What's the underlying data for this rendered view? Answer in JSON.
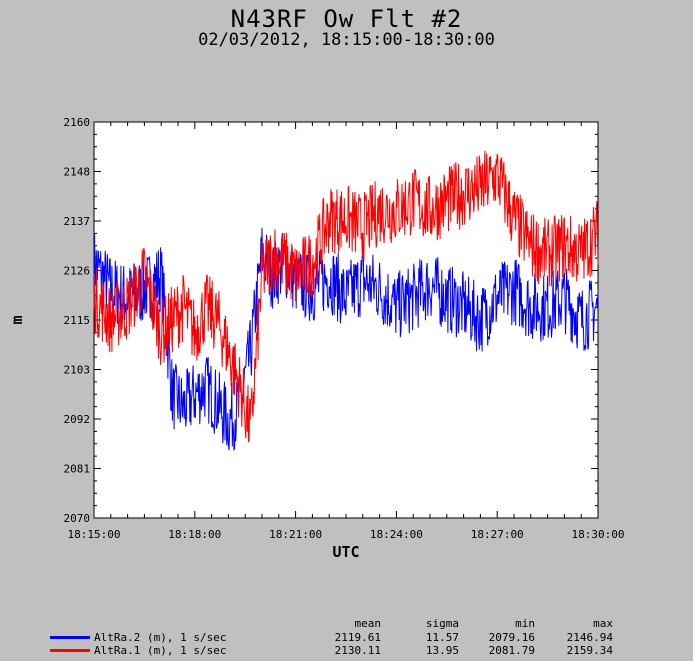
{
  "header": {
    "title": "N43RF Ow Flt #2",
    "subtitle": "02/03/2012, 18:15:00-18:30:00"
  },
  "chart_data": {
    "type": "line",
    "title": "N43RF Ow Flt #2",
    "subtitle": "02/03/2012, 18:15:00-18:30:00",
    "xlabel": "UTC",
    "ylabel": "m",
    "xlim": [
      "18:15:00",
      "18:30:00"
    ],
    "ylim": [
      2070,
      2160
    ],
    "x_ticks": [
      "18:15:00",
      "18:18:00",
      "18:21:00",
      "18:24:00",
      "18:27:00",
      "18:30:00"
    ],
    "y_ticks": [
      "2160",
      "2148",
      "2137",
      "2126",
      "2115",
      "2103",
      "2092",
      "2081",
      "2070"
    ],
    "grid": false,
    "series": [
      {
        "name": "AltRa.2 (m), 1 s/sec",
        "color": "#0000ff",
        "x": [
          "18:15:00",
          "18:15:30",
          "18:16:00",
          "18:16:30",
          "18:17:00",
          "18:17:20",
          "18:17:40",
          "18:18:00",
          "18:18:20",
          "18:18:40",
          "18:19:00",
          "18:19:20",
          "18:19:40",
          "18:20:00",
          "18:20:20",
          "18:20:40",
          "18:21:00",
          "18:21:30",
          "18:22:00",
          "18:22:30",
          "18:23:00",
          "18:23:30",
          "18:24:00",
          "18:24:30",
          "18:25:00",
          "18:25:30",
          "18:26:00",
          "18:26:30",
          "18:27:00",
          "18:27:30",
          "18:28:00",
          "18:28:30",
          "18:29:00",
          "18:29:30",
          "18:30:00"
        ],
        "values": [
          2128,
          2122,
          2120,
          2122,
          2125,
          2098,
          2095,
          2098,
          2100,
          2096,
          2092,
          2095,
          2108,
          2130,
          2125,
          2128,
          2124,
          2122,
          2125,
          2120,
          2124,
          2122,
          2118,
          2120,
          2123,
          2120,
          2118,
          2115,
          2120,
          2122,
          2118,
          2118,
          2120,
          2115,
          2118
        ]
      },
      {
        "name": "AltRa.1 (m), 1 s/sec",
        "color": "#ff0000",
        "x": [
          "18:15:00",
          "18:15:30",
          "18:16:00",
          "18:16:30",
          "18:17:00",
          "18:17:20",
          "18:17:40",
          "18:18:00",
          "18:18:20",
          "18:18:40",
          "18:19:00",
          "18:19:20",
          "18:19:40",
          "18:20:00",
          "18:20:20",
          "18:20:40",
          "18:21:00",
          "18:21:30",
          "18:22:00",
          "18:22:30",
          "18:23:00",
          "18:23:30",
          "18:24:00",
          "18:24:30",
          "18:25:00",
          "18:25:30",
          "18:26:00",
          "18:26:30",
          "18:27:00",
          "18:27:30",
          "18:28:00",
          "18:28:30",
          "18:29:00",
          "18:29:30",
          "18:30:00"
        ],
        "values": [
          2120,
          2115,
          2118,
          2125,
          2112,
          2115,
          2118,
          2112,
          2118,
          2115,
          2108,
          2100,
          2090,
          2125,
          2130,
          2128,
          2125,
          2128,
          2138,
          2138,
          2136,
          2140,
          2140,
          2142,
          2140,
          2142,
          2144,
          2145,
          2148,
          2138,
          2132,
          2130,
          2132,
          2130,
          2135
        ]
      }
    ]
  },
  "stats": {
    "headers": {
      "mean": "mean",
      "sigma": "sigma",
      "min": "min",
      "max": "max"
    },
    "rows": [
      {
        "label": "AltRa.2 (m), 1 s/sec",
        "color": "#0000ff",
        "mean": "2119.61",
        "sigma": "11.57",
        "min": "2079.16",
        "max": "2146.94"
      },
      {
        "label": "AltRa.1 (m), 1 s/sec",
        "color": "#ff0000",
        "mean": "2130.11",
        "sigma": "13.95",
        "min": "2081.79",
        "max": "2159.34"
      }
    ]
  }
}
